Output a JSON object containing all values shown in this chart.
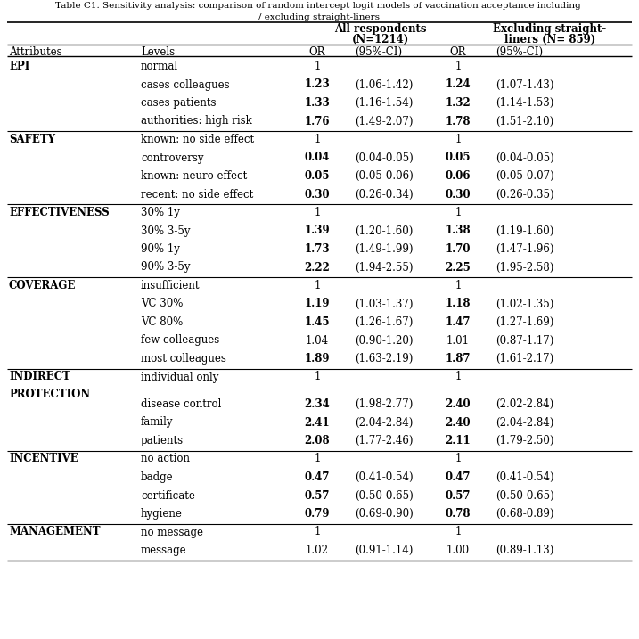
{
  "title_line1": "Table C1. Sensitivity analysis: comparison of random intercept logit models of vaccination acceptance including ",
  "title_line2": "/ excluding straight-liners",
  "col_headers": {
    "attributes": "Attributes",
    "levels": "Levels",
    "or1": "OR",
    "ci1": "(95%-CI)",
    "or2": "OR",
    "ci2": "(95%-CI)",
    "group1_line1": "All respondents",
    "group1_line2": "(N=1214)",
    "group2_line1": "Excluding straight-",
    "group2_line2": "liners (N= 859)"
  },
  "rows": [
    {
      "attr": "EPI",
      "level": "normal",
      "or1": "1",
      "ci1": "",
      "or2": "1",
      "ci2": "",
      "bold1": false,
      "bold2": false
    },
    {
      "attr": "",
      "level": "cases colleagues",
      "or1": "1.23",
      "ci1": "(1.06-1.42)",
      "or2": "1.24",
      "ci2": "(1.07-1.43)",
      "bold1": true,
      "bold2": true
    },
    {
      "attr": "",
      "level": "cases patients",
      "or1": "1.33",
      "ci1": "(1.16-1.54)",
      "or2": "1.32",
      "ci2": "(1.14-1.53)",
      "bold1": true,
      "bold2": true
    },
    {
      "attr": "",
      "level": "authorities: high risk",
      "or1": "1.76",
      "ci1": "(1.49-2.07)",
      "or2": "1.78",
      "ci2": "(1.51-2.10)",
      "bold1": true,
      "bold2": true
    },
    {
      "attr": "SAFETY",
      "level": "known: no side effect",
      "or1": "1",
      "ci1": "",
      "or2": "1",
      "ci2": "",
      "bold1": false,
      "bold2": false
    },
    {
      "attr": "",
      "level": "controversy",
      "or1": "0.04",
      "ci1": "(0.04-0.05)",
      "or2": "0.05",
      "ci2": "(0.04-0.05)",
      "bold1": true,
      "bold2": true
    },
    {
      "attr": "",
      "level": "known: neuro effect",
      "or1": "0.05",
      "ci1": "(0.05-0.06)",
      "or2": "0.06",
      "ci2": "(0.05-0.07)",
      "bold1": true,
      "bold2": true
    },
    {
      "attr": "",
      "level": "recent: no side effect",
      "or1": "0.30",
      "ci1": "(0.26-0.34)",
      "or2": "0.30",
      "ci2": "(0.26-0.35)",
      "bold1": true,
      "bold2": true
    },
    {
      "attr": "EFFECTIVENESS",
      "level": "30% 1y",
      "or1": "1",
      "ci1": "",
      "or2": "1",
      "ci2": "",
      "bold1": false,
      "bold2": false
    },
    {
      "attr": "",
      "level": "30% 3-5y",
      "or1": "1.39",
      "ci1": "(1.20-1.60)",
      "or2": "1.38",
      "ci2": "(1.19-1.60)",
      "bold1": true,
      "bold2": true
    },
    {
      "attr": "",
      "level": "90% 1y",
      "or1": "1.73",
      "ci1": "(1.49-1.99)",
      "or2": "1.70",
      "ci2": "(1.47-1.96)",
      "bold1": true,
      "bold2": true
    },
    {
      "attr": "",
      "level": "90% 3-5y",
      "or1": "2.22",
      "ci1": "(1.94-2.55)",
      "or2": "2.25",
      "ci2": "(1.95-2.58)",
      "bold1": true,
      "bold2": true
    },
    {
      "attr": "COVERAGE",
      "level": "insufficient",
      "or1": "1",
      "ci1": "",
      "or2": "1",
      "ci2": "",
      "bold1": false,
      "bold2": false
    },
    {
      "attr": "",
      "level": "VC 30%",
      "or1": "1.19",
      "ci1": "(1.03-1.37)",
      "or2": "1.18",
      "ci2": "(1.02-1.35)",
      "bold1": true,
      "bold2": true
    },
    {
      "attr": "",
      "level": "VC 80%",
      "or1": "1.45",
      "ci1": "(1.26-1.67)",
      "or2": "1.47",
      "ci2": "(1.27-1.69)",
      "bold1": true,
      "bold2": true
    },
    {
      "attr": "",
      "level": "few colleagues",
      "or1": "1.04",
      "ci1": "(0.90-1.20)",
      "or2": "1.01",
      "ci2": "(0.87-1.17)",
      "bold1": false,
      "bold2": false
    },
    {
      "attr": "",
      "level": "most colleagues",
      "or1": "1.89",
      "ci1": "(1.63-2.19)",
      "or2": "1.87",
      "ci2": "(1.61-2.17)",
      "bold1": true,
      "bold2": true
    },
    {
      "attr": "INDIRECT\nPROTECTION",
      "level": "individual only",
      "or1": "1",
      "ci1": "",
      "or2": "1",
      "ci2": "",
      "bold1": false,
      "bold2": false
    },
    {
      "attr": "",
      "level": "disease control",
      "or1": "2.34",
      "ci1": "(1.98-2.77)",
      "or2": "2.40",
      "ci2": "(2.02-2.84)",
      "bold1": true,
      "bold2": true
    },
    {
      "attr": "",
      "level": "family",
      "or1": "2.41",
      "ci1": "(2.04-2.84)",
      "or2": "2.40",
      "ci2": "(2.04-2.84)",
      "bold1": true,
      "bold2": true
    },
    {
      "attr": "",
      "level": "patients",
      "or1": "2.08",
      "ci1": "(1.77-2.46)",
      "or2": "2.11",
      "ci2": "(1.79-2.50)",
      "bold1": true,
      "bold2": true
    },
    {
      "attr": "INCENTIVE",
      "level": "no action",
      "or1": "1",
      "ci1": "",
      "or2": "1",
      "ci2": "",
      "bold1": false,
      "bold2": false
    },
    {
      "attr": "",
      "level": "badge",
      "or1": "0.47",
      "ci1": "(0.41-0.54)",
      "or2": "0.47",
      "ci2": "(0.41-0.54)",
      "bold1": true,
      "bold2": true
    },
    {
      "attr": "",
      "level": "certificate",
      "or1": "0.57",
      "ci1": "(0.50-0.65)",
      "or2": "0.57",
      "ci2": "(0.50-0.65)",
      "bold1": true,
      "bold2": true
    },
    {
      "attr": "",
      "level": "hygiene",
      "or1": "0.79",
      "ci1": "(0.69-0.90)",
      "or2": "0.78",
      "ci2": "(0.68-0.89)",
      "bold1": true,
      "bold2": true
    },
    {
      "attr": "MANAGEMENT",
      "level": "no message",
      "or1": "1",
      "ci1": "",
      "or2": "1",
      "ci2": "",
      "bold1": false,
      "bold2": false
    },
    {
      "attr": "",
      "level": "message",
      "or1": "1.02",
      "ci1": "(0.91-1.14)",
      "or2": "1.00",
      "ci2": "(0.89-1.13)",
      "bold1": false,
      "bold2": false
    }
  ],
  "section_end_rows": [
    3,
    7,
    11,
    16,
    20,
    24
  ],
  "indirect_row": 17,
  "bg_color": "#ffffff",
  "text_color": "#000000"
}
